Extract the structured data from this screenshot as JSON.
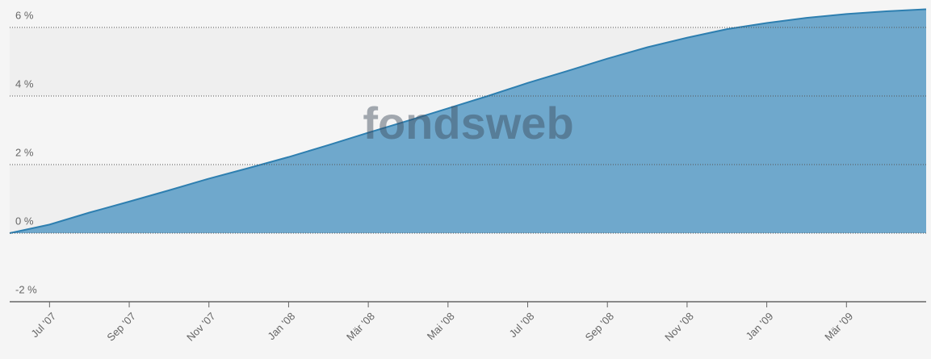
{
  "chart_data": {
    "type": "area",
    "watermark": "fondsweb",
    "x": [
      "2007-06",
      "2007-07",
      "2007-08",
      "2007-09",
      "2007-10",
      "2007-11",
      "2007-12",
      "2008-01",
      "2008-02",
      "2008-03",
      "2008-04",
      "2008-05",
      "2008-06",
      "2008-07",
      "2008-08",
      "2008-09",
      "2008-10",
      "2008-11",
      "2008-12",
      "2009-01",
      "2009-02",
      "2009-03",
      "2009-04",
      "2009-05"
    ],
    "values": [
      0,
      0.25,
      0.6,
      0.92,
      1.25,
      1.59,
      1.9,
      2.22,
      2.57,
      2.93,
      3.28,
      3.64,
      4.0,
      4.38,
      4.73,
      5.09,
      5.42,
      5.7,
      5.95,
      6.13,
      6.28,
      6.39,
      6.47,
      6.53
    ],
    "color": "#6fa8cc",
    "line_color": "#2e7fb0",
    "xlim": [
      "2007-06",
      "2009-05"
    ],
    "xticks": [
      {
        "value": "2007-07",
        "label": "Jul '07"
      },
      {
        "value": "2007-09",
        "label": "Sep '07"
      },
      {
        "value": "2007-11",
        "label": "Nov '07"
      },
      {
        "value": "2008-01",
        "label": "Jan '08"
      },
      {
        "value": "2008-03",
        "label": "Mär '08"
      },
      {
        "value": "2008-05",
        "label": "Mai '08"
      },
      {
        "value": "2008-07",
        "label": "Jul '08"
      },
      {
        "value": "2008-09",
        "label": "Sep '08"
      },
      {
        "value": "2008-11",
        "label": "Nov '08"
      },
      {
        "value": "2009-01",
        "label": "Jan '09"
      },
      {
        "value": "2009-03",
        "label": "Mär '09"
      }
    ],
    "ylim": [
      -2,
      6.8
    ],
    "yticks": [
      {
        "value": -2,
        "label": "-2 %"
      },
      {
        "value": 0,
        "label": "0 %"
      },
      {
        "value": 2,
        "label": "2 %"
      },
      {
        "value": 4,
        "label": "4 %"
      },
      {
        "value": 6,
        "label": "6 %"
      }
    ],
    "grid": true
  }
}
